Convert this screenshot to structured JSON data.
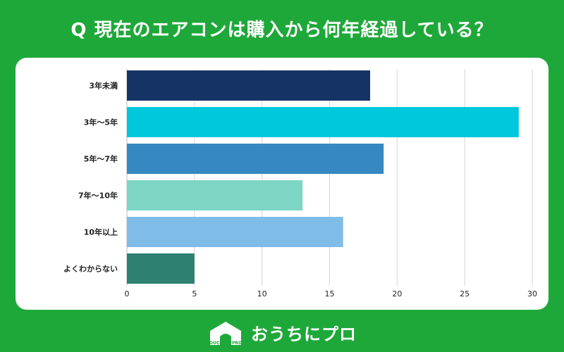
{
  "title": "Q 現在のエアコンは購入から何年経過している？",
  "brand": {
    "name": "おうちにプロ",
    "logo_text": "OUCHI ni PRO"
  },
  "chart_data": {
    "type": "bar",
    "orientation": "horizontal",
    "categories": [
      "3年未満",
      "3年～5年",
      "5年～7年",
      "7年～10年",
      "10年以上",
      "よくわからない"
    ],
    "values": [
      18,
      29,
      19,
      13,
      16,
      5
    ],
    "colors": [
      "#163366",
      "#00c8dc",
      "#3588c0",
      "#7dd6c4",
      "#80bce8",
      "#2e8070"
    ],
    "xlim": [
      0,
      30
    ],
    "xticks": [
      0,
      5,
      10,
      15,
      20,
      25,
      30
    ],
    "grid": true,
    "title": "",
    "xlabel": "",
    "ylabel": ""
  }
}
